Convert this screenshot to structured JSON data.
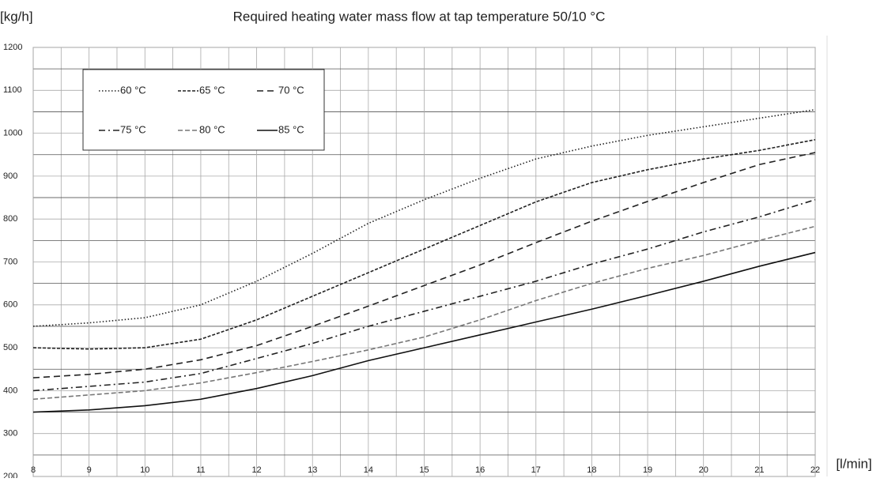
{
  "chart_data": {
    "type": "line",
    "title": "Required heating water mass flow at tap temperature 50/10 °C",
    "y_label": "[kg/h]",
    "x_label": "[l/min]",
    "x": [
      8,
      9,
      10,
      11,
      12,
      13,
      14,
      15,
      16,
      17,
      18,
      19,
      20,
      21,
      22
    ],
    "xlim": [
      8,
      22
    ],
    "xticks": [
      8,
      9,
      10,
      11,
      12,
      13,
      14,
      15,
      16,
      17,
      18,
      19,
      20,
      21,
      22
    ],
    "x_minor_grid": [
      8.5,
      9.5,
      10.5,
      11.5,
      12.5,
      13.5,
      14.5,
      15.5,
      16.5,
      17.5,
      18.5,
      19.5,
      20.5,
      21.5
    ],
    "ylim": [
      200,
      1200
    ],
    "yticks": [
      200,
      300,
      400,
      500,
      600,
      700,
      800,
      900,
      1000,
      1100,
      1200
    ],
    "y_minor_grid": [
      250,
      350,
      450,
      550,
      650,
      750,
      850,
      950,
      1050,
      1150
    ],
    "grid": true,
    "legend": "upper left",
    "series": [
      {
        "name": "60 °C",
        "color": "#222",
        "dash": "1.5,2.5",
        "values": [
          550,
          558,
          570,
          600,
          655,
          720,
          790,
          845,
          895,
          940,
          970,
          995,
          1015,
          1035,
          1055
        ]
      },
      {
        "name": "65 °C",
        "color": "#222",
        "dash": "4,2",
        "values": [
          500,
          497,
          500,
          520,
          565,
          620,
          675,
          730,
          785,
          840,
          885,
          915,
          940,
          960,
          985
        ]
      },
      {
        "name": "70 °C",
        "color": "#222",
        "dash": "8,5",
        "values": [
          430,
          438,
          450,
          472,
          505,
          550,
          597,
          645,
          693,
          745,
          795,
          841,
          885,
          927,
          955
        ]
      },
      {
        "name": "75 °C",
        "color": "#222",
        "dash": "8,4,2,4",
        "values": [
          400,
          410,
          420,
          440,
          475,
          510,
          550,
          585,
          620,
          655,
          695,
          730,
          770,
          805,
          845
        ]
      },
      {
        "name": "80 °C",
        "color": "#777",
        "dash": "6,3",
        "values": [
          380,
          390,
          400,
          418,
          442,
          468,
          495,
          525,
          565,
          610,
          650,
          685,
          715,
          750,
          783
        ]
      },
      {
        "name": "85 °C",
        "color": "#111",
        "dash": "",
        "values": [
          350,
          355,
          365,
          380,
          405,
          435,
          470,
          500,
          530,
          560,
          590,
          622,
          655,
          690,
          722
        ]
      }
    ]
  }
}
